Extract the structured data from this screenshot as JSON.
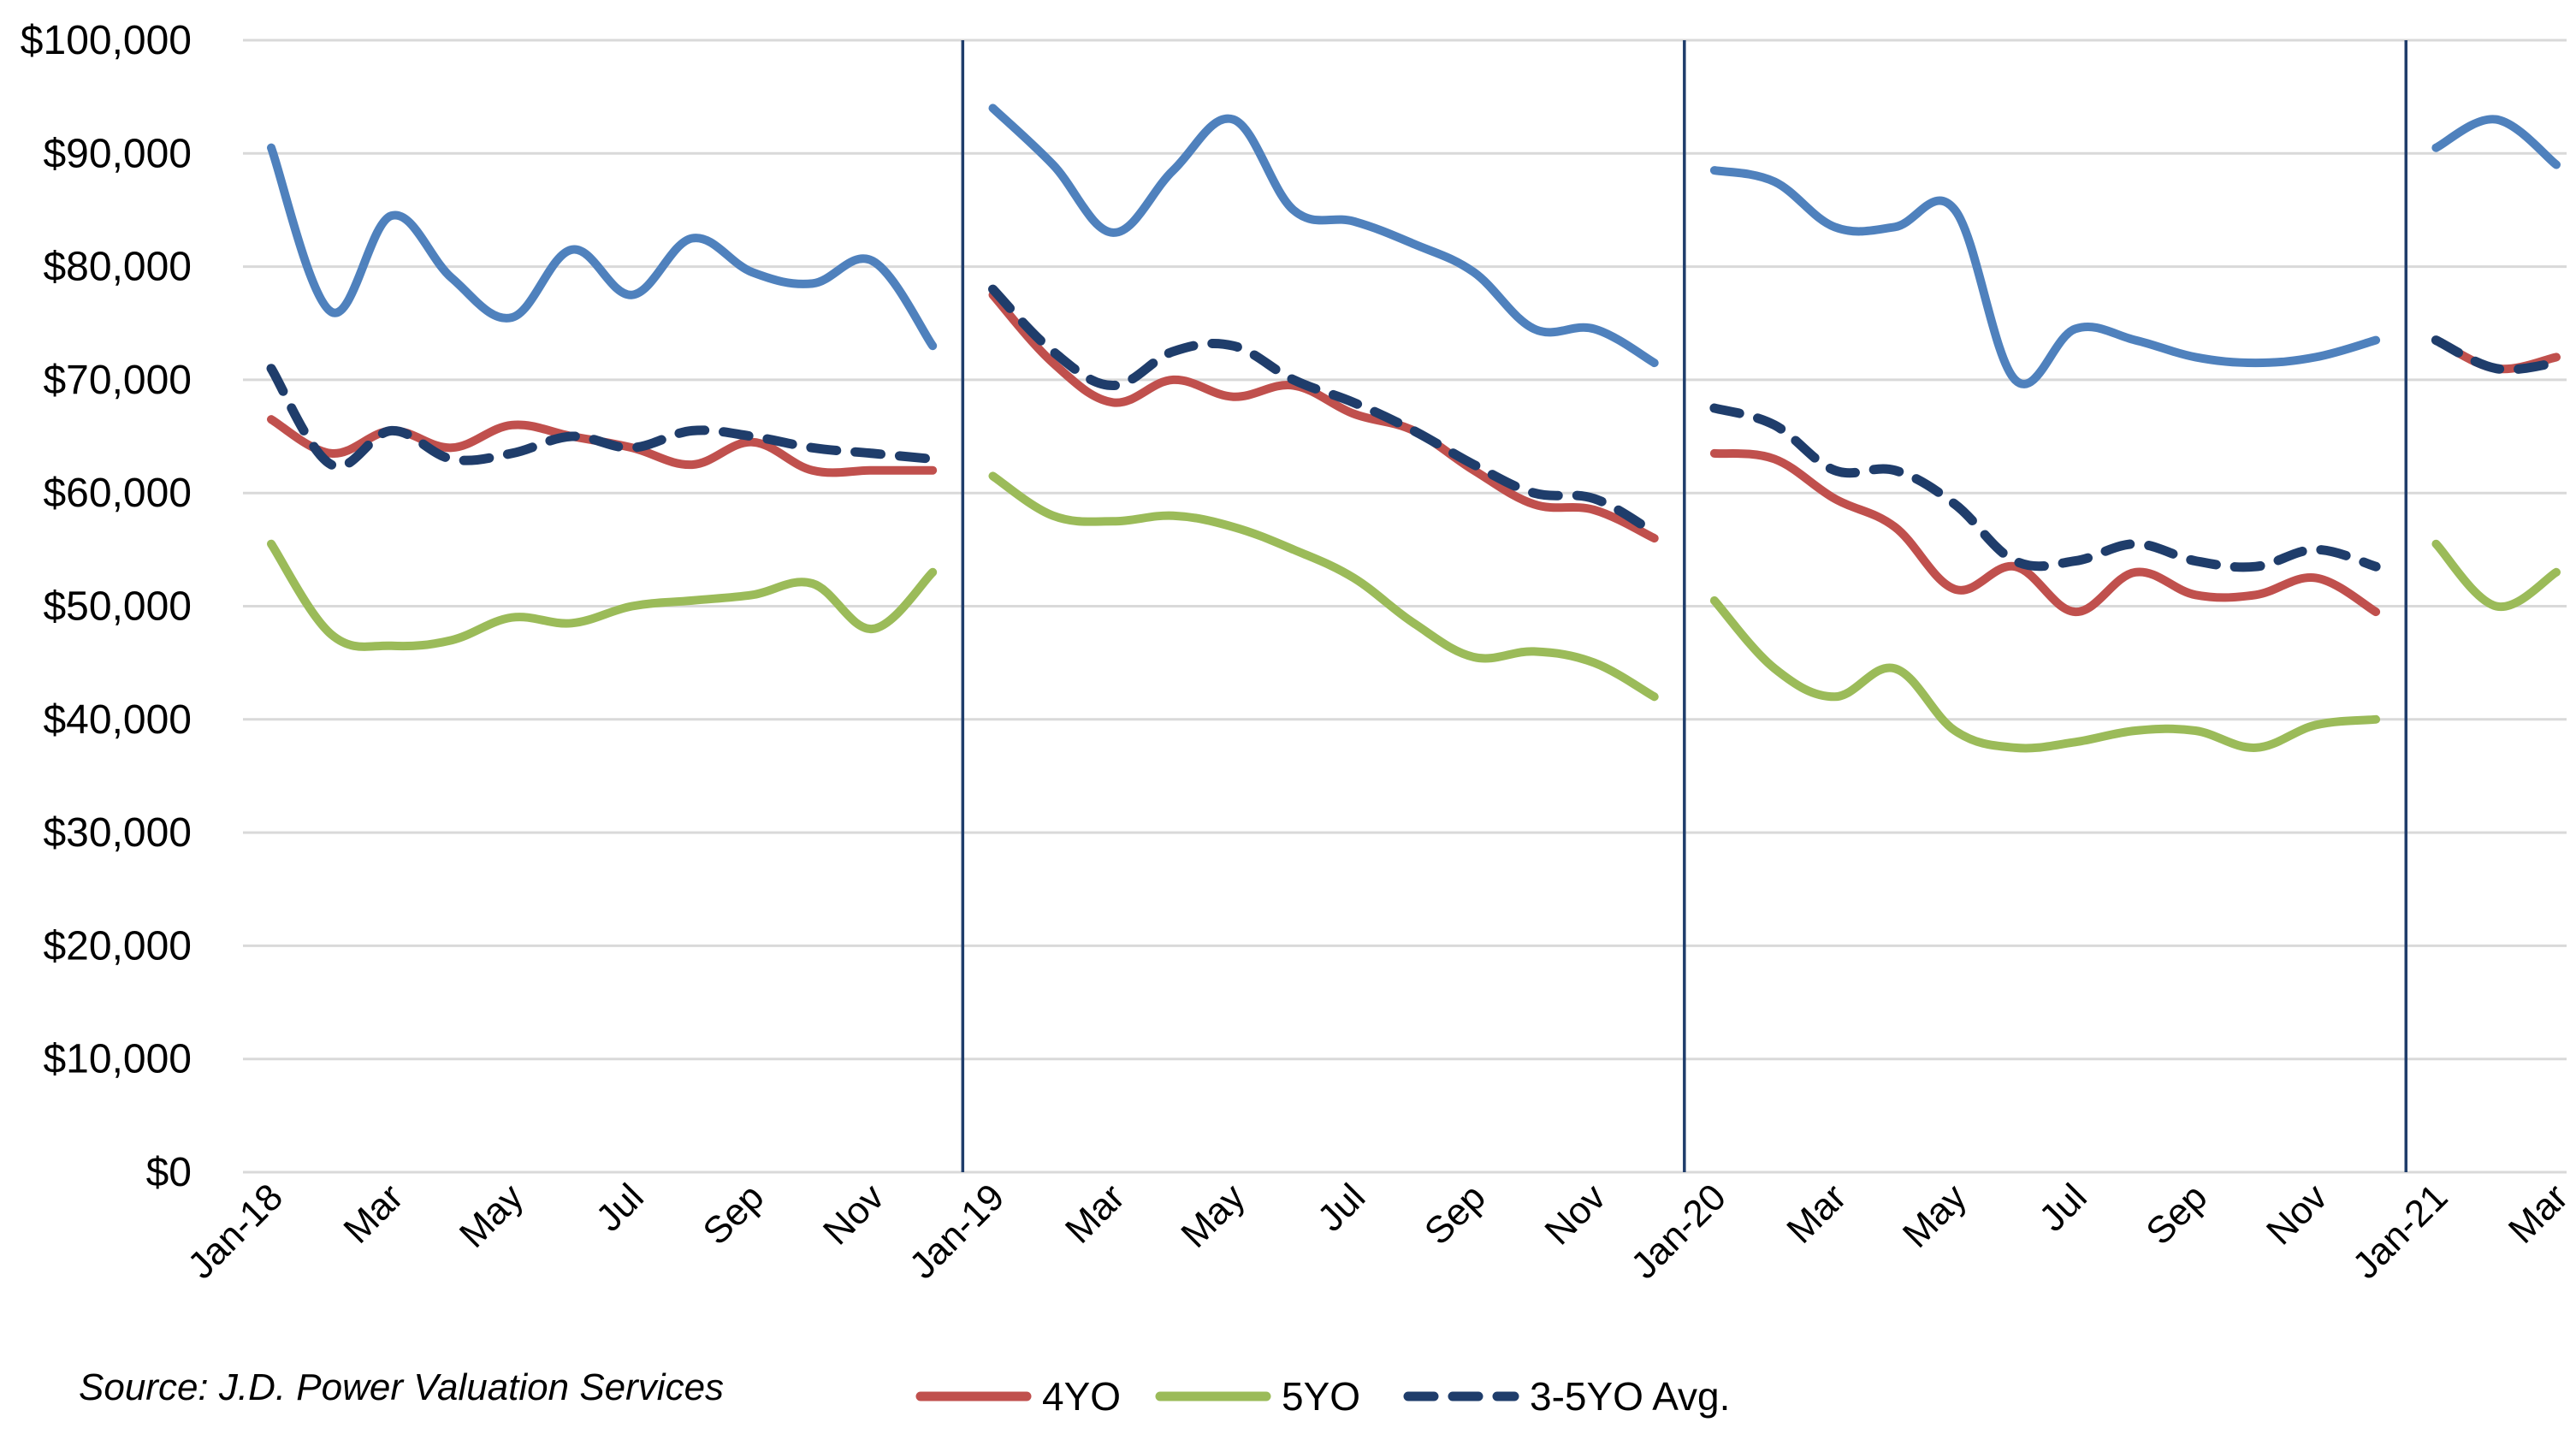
{
  "source_note": "Source: J.D. Power Valuation Services",
  "chart_data": {
    "type": "line",
    "title": "",
    "xlabel": "",
    "ylabel": "",
    "ylim": [
      0,
      100000
    ],
    "yticks": [
      0,
      10000,
      20000,
      30000,
      40000,
      50000,
      60000,
      70000,
      80000,
      90000,
      100000
    ],
    "ytick_labels": [
      "$0",
      "$10,000",
      "$20,000",
      "$30,000",
      "$40,000",
      "$50,000",
      "$60,000",
      "$70,000",
      "$80,000",
      "$90,000",
      "$100,000"
    ],
    "grid": true,
    "legend_position": "bottom",
    "x_tick_labels": [
      "Jan-18",
      "Mar",
      "May",
      "Jul",
      "Sep",
      "Nov",
      "Jan-19",
      "Mar",
      "May",
      "Jul",
      "Sep",
      "Nov",
      "Jan-20",
      "Mar",
      "May",
      "Jul",
      "Sep",
      "Nov",
      "Jan-21",
      "Mar"
    ],
    "year_dividers": [
      "Jan-19",
      "Jan-20",
      "Jan-21"
    ],
    "segments": [
      {
        "months": [
          "Jan-18",
          "Feb-18",
          "Mar-18",
          "Apr-18",
          "May-18",
          "Jun-18",
          "Jul-18",
          "Aug-18",
          "Sep-18",
          "Oct-18",
          "Nov-18",
          "Dec-18"
        ],
        "series": [
          {
            "name": "",
            "color": "#4F81BD",
            "dash": false,
            "values": [
              90500,
              76000,
              84500,
              79000,
              75500,
              81500,
              77500,
              82500,
              79500,
              78500,
              80500,
              73000
            ]
          },
          {
            "name": "4YO",
            "color": "#C0504D",
            "dash": false,
            "values": [
              66500,
              63500,
              65500,
              64000,
              66000,
              65000,
              64000,
              62500,
              64500,
              62000,
              62000,
              62000
            ]
          },
          {
            "name": "5YO",
            "color": "#9BBB59",
            "dash": false,
            "values": [
              55500,
              47500,
              46500,
              47000,
              49000,
              48500,
              50000,
              50500,
              51000,
              52000,
              48000,
              53000
            ]
          },
          {
            "name": "3-5YO Avg.",
            "color": "#1F3D6B",
            "dash": true,
            "values": [
              71000,
              62500,
              65500,
              63000,
              63500,
              65000,
              64000,
              65500,
              65000,
              64000,
              63500,
              63000
            ]
          }
        ]
      },
      {
        "months": [
          "Jan-19",
          "Feb-19",
          "Mar-19",
          "Apr-19",
          "May-19",
          "Jun-19",
          "Jul-19",
          "Aug-19",
          "Sep-19",
          "Oct-19",
          "Nov-19",
          "Dec-19"
        ],
        "series": [
          {
            "name": "",
            "color": "#4F81BD",
            "dash": false,
            "values": [
              94000,
              89000,
              83000,
              88500,
              93000,
              85000,
              84000,
              82000,
              79500,
              74500,
              74500,
              71500
            ]
          },
          {
            "name": "4YO",
            "color": "#C0504D",
            "dash": false,
            "values": [
              77500,
              71500,
              68000,
              70000,
              68500,
              69500,
              67000,
              65500,
              62000,
              59000,
              58500,
              56000
            ]
          },
          {
            "name": "5YO",
            "color": "#9BBB59",
            "dash": false,
            "values": [
              61500,
              58000,
              57500,
              58000,
              57000,
              55000,
              52500,
              48500,
              45500,
              46000,
              45000,
              42000
            ]
          },
          {
            "name": "3-5YO Avg.",
            "color": "#1F3D6B",
            "dash": true,
            "values": [
              78000,
              72500,
              69500,
              72500,
              73000,
              70000,
              68000,
              65500,
              62500,
              60000,
              59500,
              56500
            ]
          }
        ]
      },
      {
        "months": [
          "Jan-20",
          "Feb-20",
          "Mar-20",
          "Apr-20",
          "May-20",
          "Jun-20",
          "Jul-20",
          "Aug-20",
          "Sep-20",
          "Oct-20",
          "Nov-20",
          "Dec-20"
        ],
        "series": [
          {
            "name": "",
            "color": "#4F81BD",
            "dash": false,
            "values": [
              88500,
              87500,
              83500,
              83500,
              85000,
              70000,
              74500,
              73500,
              72000,
              71500,
              72000,
              73500
            ]
          },
          {
            "name": "4YO",
            "color": "#C0504D",
            "dash": false,
            "values": [
              63500,
              63000,
              59500,
              57000,
              51500,
              53500,
              49500,
              53000,
              51000,
              51000,
              52500,
              49500
            ]
          },
          {
            "name": "5YO",
            "color": "#9BBB59",
            "dash": false,
            "values": [
              50500,
              44500,
              42000,
              44500,
              39000,
              37500,
              38000,
              39000,
              39000,
              37500,
              39500,
              40000
            ]
          },
          {
            "name": "3-5YO Avg.",
            "color": "#1F3D6B",
            "dash": true,
            "values": [
              67500,
              66000,
              62000,
              62000,
              59000,
              54000,
              54000,
              55500,
              54000,
              53500,
              55000,
              53500
            ]
          }
        ]
      },
      {
        "months": [
          "Jan-21",
          "Feb-21",
          "Mar-21"
        ],
        "series": [
          {
            "name": "",
            "color": "#4F81BD",
            "dash": false,
            "values": [
              90500,
              93000,
              89000
            ]
          },
          {
            "name": "4YO",
            "color": "#C0504D",
            "dash": false,
            "values": [
              73500,
              71000,
              72000
            ]
          },
          {
            "name": "5YO",
            "color": "#9BBB59",
            "dash": false,
            "values": [
              55500,
              50000,
              53000
            ]
          },
          {
            "name": "3-5YO Avg.",
            "color": "#1F3D6B",
            "dash": true,
            "values": [
              73500,
              71000,
              71500
            ]
          }
        ]
      }
    ],
    "legend": [
      {
        "name": "4YO",
        "color": "#C0504D",
        "dash": false
      },
      {
        "name": "5YO",
        "color": "#9BBB59",
        "dash": false
      },
      {
        "name": "3-5YO Avg.",
        "color": "#1F3D6B",
        "dash": true
      }
    ]
  }
}
